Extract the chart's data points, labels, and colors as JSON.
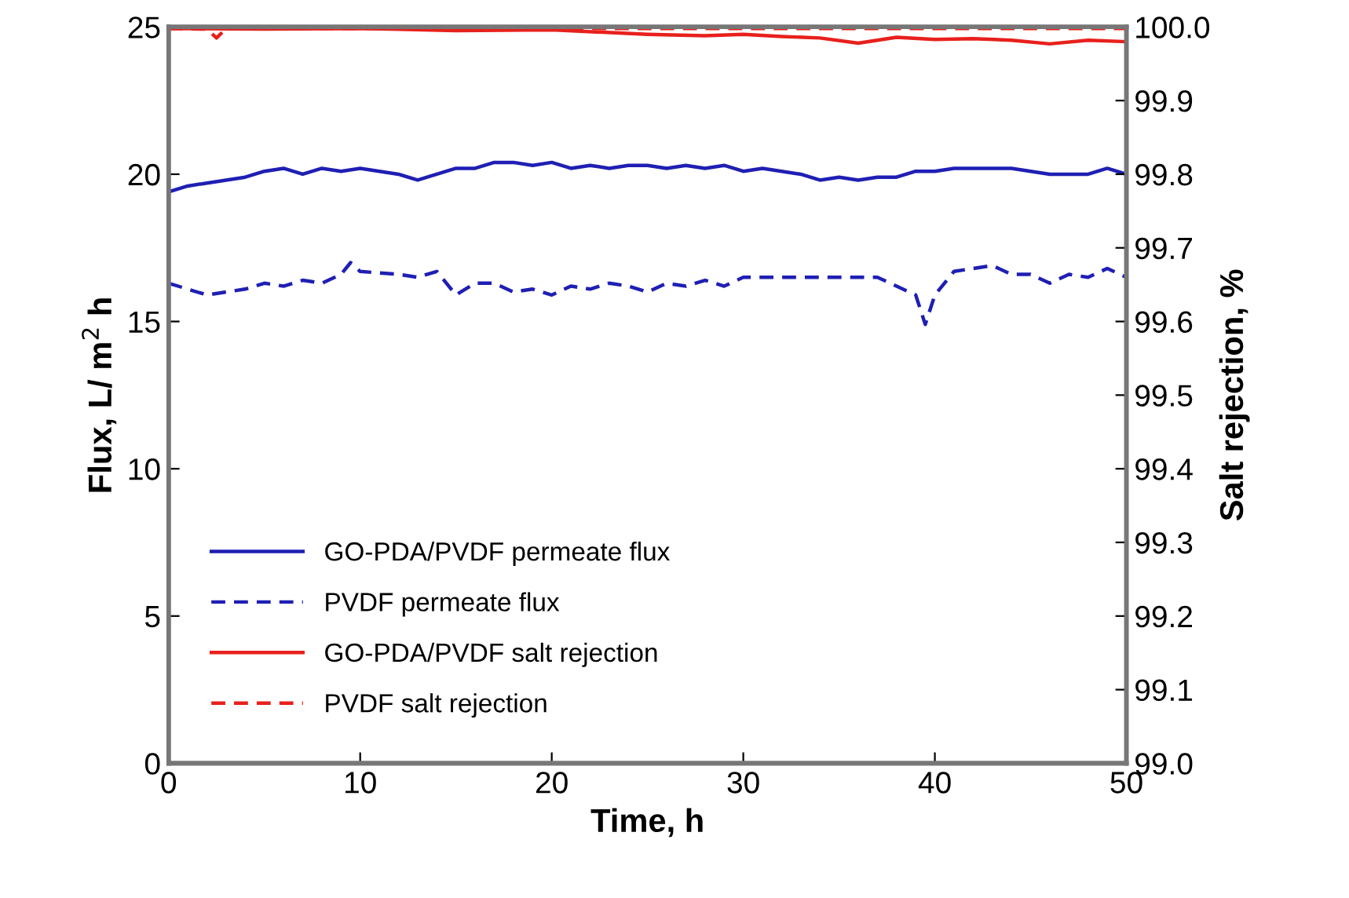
{
  "chart_data": {
    "type": "line",
    "xlabel": "Time, h",
    "ylabel": "Flux, L/ m$^{2}$ h",
    "y2label": "Salt rejection, %",
    "xlim": [
      0,
      50
    ],
    "xticks": [
      0,
      10,
      20,
      30,
      40,
      50
    ],
    "ylim": [
      0,
      25
    ],
    "yticks": [
      0,
      5,
      10,
      15,
      20,
      25
    ],
    "y2lim": [
      99.0,
      100.0
    ],
    "y2ticks": [
      {
        "value": 99.0,
        "label": "99.0"
      },
      99.1,
      99.2,
      99.3,
      99.4,
      99.5,
      99.6,
      99.7,
      99.8,
      99.9,
      {
        "value": 100.0,
        "label": "100.0"
      }
    ],
    "grid": false,
    "legend": "bottom left",
    "marker": "none",
    "series": [
      {
        "name": "GO-PDA/PVDF permeate flux",
        "color": "#1f1fb4",
        "line_style": "solid",
        "x": [
          0,
          1,
          2,
          3,
          4,
          5,
          6,
          7,
          8,
          9,
          10,
          11,
          12,
          13,
          14,
          15,
          16,
          17,
          18,
          19,
          20,
          21,
          22,
          23,
          24,
          25,
          26,
          27,
          28,
          29,
          30,
          31,
          32,
          33,
          34,
          35,
          36,
          37,
          38,
          39,
          40,
          41,
          42,
          43,
          44,
          45,
          46,
          47,
          48,
          49,
          50
        ],
        "values": [
          19.4,
          19.6,
          19.7,
          19.8,
          19.9,
          20.1,
          20.2,
          20.0,
          20.2,
          20.1,
          20.2,
          20.1,
          20.0,
          19.8,
          20.0,
          20.2,
          20.2,
          20.4,
          20.4,
          20.3,
          20.4,
          20.2,
          20.3,
          20.2,
          20.3,
          20.3,
          20.2,
          20.3,
          20.2,
          20.3,
          20.1,
          20.2,
          20.1,
          20.0,
          19.8,
          19.9,
          19.8,
          19.9,
          19.9,
          20.1,
          20.1,
          20.2,
          20.2,
          20.2,
          20.2,
          20.1,
          20.0,
          20.0,
          20.0,
          20.2,
          20.0
        ]
      },
      {
        "name": "PVDF permeate flux",
        "color": "#1f1fb4",
        "line_style": "dashed",
        "x": [
          0,
          1,
          2,
          3,
          4,
          5,
          6,
          7,
          8,
          9,
          9.5,
          10,
          12,
          13,
          14,
          15,
          16,
          17,
          18,
          19,
          20,
          21,
          22,
          23,
          24,
          25,
          26,
          27,
          28,
          29,
          30,
          32,
          35,
          37,
          38,
          39,
          39.5,
          40,
          41,
          42,
          43,
          44,
          45,
          46,
          47,
          48,
          49,
          50
        ],
        "values": [
          16.3,
          16.1,
          15.9,
          16.0,
          16.1,
          16.3,
          16.2,
          16.4,
          16.3,
          16.6,
          17.0,
          16.7,
          16.6,
          16.5,
          16.7,
          15.9,
          16.3,
          16.3,
          16.0,
          16.1,
          15.9,
          16.2,
          16.1,
          16.3,
          16.2,
          16.0,
          16.3,
          16.2,
          16.4,
          16.2,
          16.5,
          16.5,
          16.5,
          16.5,
          16.2,
          15.9,
          14.9,
          15.9,
          16.7,
          16.8,
          16.9,
          16.6,
          16.6,
          16.3,
          16.6,
          16.5,
          16.8,
          16.5
        ]
      },
      {
        "name": "GO-PDA/PVDF salt rejection",
        "color": "#e8201c",
        "line_style": "solid",
        "axis": "y2",
        "x": [
          0,
          5,
          10,
          15,
          20,
          25,
          28,
          30,
          32,
          34,
          36,
          38,
          40,
          42,
          44,
          46,
          48,
          50
        ],
        "values": [
          99.998,
          99.997,
          99.998,
          99.995,
          99.996,
          99.99,
          99.988,
          99.99,
          99.987,
          99.985,
          99.978,
          99.986,
          99.983,
          99.984,
          99.982,
          99.977,
          99.982,
          99.98
        ]
      },
      {
        "name": "PVDF salt rejection",
        "color": "#e8201c",
        "line_style": "dashed",
        "axis": "y2",
        "x": [
          0,
          2,
          2.5,
          3,
          5,
          10,
          20,
          30,
          40,
          50
        ],
        "values": [
          99.998,
          99.997,
          99.985,
          99.998,
          99.998,
          99.998,
          99.998,
          99.998,
          99.998,
          99.998
        ]
      }
    ]
  }
}
